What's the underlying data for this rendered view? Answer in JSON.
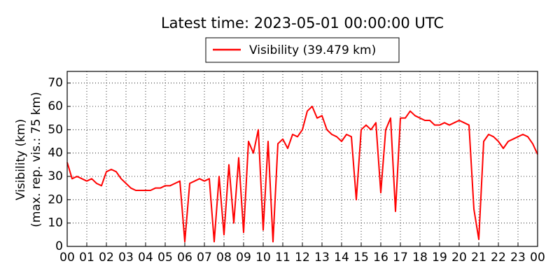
{
  "chart_data": {
    "type": "line",
    "title": "Latest time: 2023-05-01 00:00:00 UTC",
    "ylabel": [
      "Visibility (km)",
      "(max. rep. vis.: 75 km)"
    ],
    "x": [
      0,
      0.25,
      0.5,
      0.75,
      1,
      1.25,
      1.5,
      1.75,
      2,
      2.25,
      2.5,
      2.75,
      3,
      3.25,
      3.5,
      3.75,
      4,
      4.25,
      4.5,
      4.75,
      5,
      5.25,
      5.5,
      5.75,
      6,
      6.25,
      6.5,
      6.75,
      7,
      7.25,
      7.5,
      7.75,
      8,
      8.25,
      8.5,
      8.75,
      9,
      9.25,
      9.5,
      9.75,
      10,
      10.25,
      10.5,
      10.75,
      11,
      11.25,
      11.5,
      11.75,
      12,
      12.25,
      12.5,
      12.75,
      13,
      13.25,
      13.5,
      13.75,
      14,
      14.25,
      14.5,
      14.75,
      15,
      15.25,
      15.5,
      15.75,
      16,
      16.25,
      16.5,
      16.75,
      17,
      17.25,
      17.5,
      17.75,
      18,
      18.25,
      18.5,
      18.75,
      19,
      19.25,
      19.5,
      19.75,
      20,
      20.25,
      20.5,
      20.75,
      21,
      21.25,
      21.5,
      21.75,
      22,
      22.25,
      22.5,
      22.75,
      23,
      23.25,
      23.5,
      23.75,
      24
    ],
    "series": [
      {
        "name": "Visibility (39.479 km)",
        "color": "#ff0000",
        "values": [
          36,
          29,
          30,
          29,
          28,
          29,
          27,
          26,
          32,
          33,
          32,
          29,
          27,
          25,
          24,
          24,
          24,
          24,
          25,
          25,
          26,
          26,
          27,
          28,
          2,
          27,
          28,
          29,
          28,
          29,
          2,
          30,
          5,
          35,
          10,
          38,
          6,
          45,
          40,
          50,
          7,
          45,
          2,
          44,
          46,
          42,
          48,
          47,
          50,
          58,
          60,
          55,
          56,
          50,
          48,
          47,
          45,
          48,
          47,
          20,
          50,
          52,
          50,
          53,
          23,
          50,
          55,
          15,
          55,
          55,
          58,
          56,
          55,
          54,
          54,
          52,
          52,
          53,
          52,
          53,
          54,
          53,
          52,
          16,
          3,
          45,
          48,
          47,
          45,
          42,
          45,
          46,
          47,
          48,
          47,
          44,
          39.479
        ]
      }
    ],
    "xlim": [
      0,
      24
    ],
    "xticks": [
      {
        "value": 0,
        "label": "00"
      },
      {
        "value": 1,
        "label": "01"
      },
      {
        "value": 2,
        "label": "02"
      },
      {
        "value": 3,
        "label": "03"
      },
      {
        "value": 4,
        "label": "04"
      },
      {
        "value": 5,
        "label": "05"
      },
      {
        "value": 6,
        "label": "06"
      },
      {
        "value": 7,
        "label": "07"
      },
      {
        "value": 8,
        "label": "08"
      },
      {
        "value": 9,
        "label": "09"
      },
      {
        "value": 10,
        "label": "10"
      },
      {
        "value": 11,
        "label": "11"
      },
      {
        "value": 12,
        "label": "12"
      },
      {
        "value": 13,
        "label": "13"
      },
      {
        "value": 14,
        "label": "14"
      },
      {
        "value": 15,
        "label": "15"
      },
      {
        "value": 16,
        "label": "16"
      },
      {
        "value": 17,
        "label": "17"
      },
      {
        "value": 18,
        "label": "18"
      },
      {
        "value": 19,
        "label": "19"
      },
      {
        "value": 20,
        "label": "20"
      },
      {
        "value": 21,
        "label": "21"
      },
      {
        "value": 22,
        "label": "22"
      },
      {
        "value": 23,
        "label": "23"
      },
      {
        "value": 24,
        "label": "00"
      }
    ],
    "ylim": [
      0,
      75
    ],
    "yticks": [
      0,
      10,
      20,
      30,
      40,
      50,
      60,
      70
    ],
    "grid": true
  }
}
